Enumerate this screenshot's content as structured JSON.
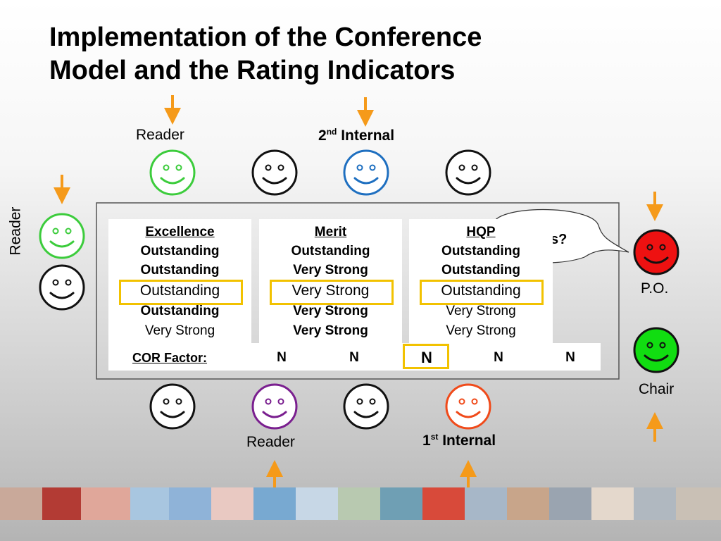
{
  "title": [
    "Implementation of the Conference",
    "Model and the Rating Indicators"
  ],
  "labels": {
    "top_reader": "Reader",
    "second_internal": {
      "number": "2",
      "suffix": "nd",
      "text": "Internal"
    },
    "left_reader": "Reader",
    "po": "P.O.",
    "chair": "Chair",
    "bottom_reader": "Reader",
    "first_internal": {
      "number": "1",
      "suffix": "st",
      "text": "Internal"
    }
  },
  "bubble": "s?",
  "columns": [
    {
      "header": "Excellence",
      "ratings": [
        "Outstanding",
        "Outstanding",
        "Outstanding",
        "Outstanding",
        "Very Strong"
      ]
    },
    {
      "header": "Merit",
      "ratings": [
        "Outstanding",
        "Very Strong",
        "Very Strong",
        "Very Strong",
        "Very Strong"
      ]
    },
    {
      "header": "HQP",
      "ratings": [
        "Outstanding",
        "Outstanding",
        "Outstanding",
        "Very Strong",
        "Very Strong"
      ]
    }
  ],
  "cor": {
    "label": "COR Factor:",
    "values": [
      "N",
      "N",
      "N",
      "N",
      "N"
    ]
  }
}
